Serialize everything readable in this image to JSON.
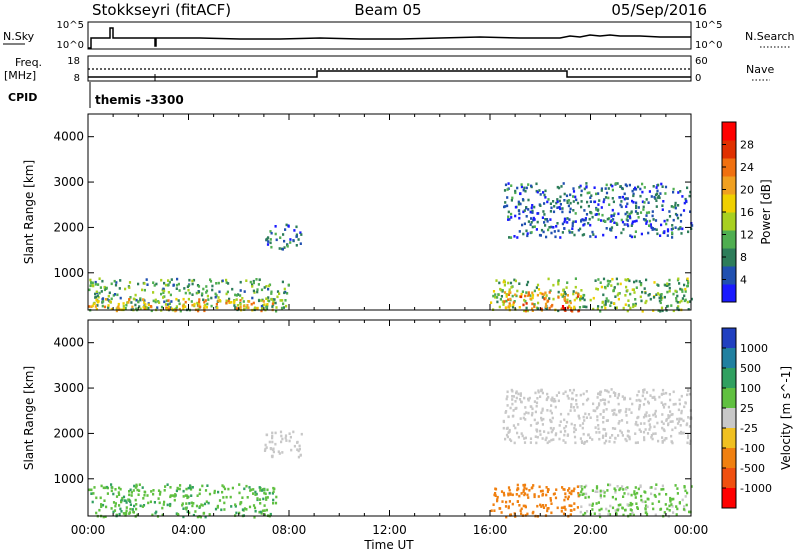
{
  "header": {
    "station": "Stokkseyri (fitACF)",
    "beam": "Beam 05",
    "date": "05/Sep/2016"
  },
  "status_panels": {
    "nsky_label": "N.Sky",
    "nsky_ticks": [
      "10^5",
      "10^0"
    ],
    "nsearch_label": "N.Search",
    "nsearch_ticks": [
      "10^5",
      "10^0"
    ],
    "freq_label_line1": "Freq.",
    "freq_label_line2": "[MHz]",
    "freq_ticks": [
      "18",
      "8"
    ],
    "nave_label": "Nave",
    "nave_ticks": [
      "60",
      "0"
    ],
    "cpid_label": "CPID",
    "cpid_text": "themis -3300"
  },
  "colors": {
    "power_scale": [
      "#1a1aff",
      "#2050b0",
      "#2d7d5a",
      "#4fae50",
      "#a8d020",
      "#f0d000",
      "#f0a020",
      "#f07010",
      "#e03000",
      "#ff0000"
    ],
    "velocity_scale": [
      "#2040c0",
      "#2080a0",
      "#30a060",
      "#60c040",
      "#c8c8c8",
      "#f0c020",
      "#f08010",
      "#f05010",
      "#ff0000"
    ]
  },
  "chart_data": [
    {
      "type": "heatmap",
      "name": "power",
      "ylabel": "Slant Range [km]",
      "ylim": [
        180,
        4500
      ],
      "y_ticks": [
        "1000",
        "2000",
        "3000",
        "4000"
      ],
      "colorbar_label": "Power [dB]",
      "colorbar_ticks": [
        "4",
        "8",
        "12",
        "16",
        "20",
        "24",
        "28"
      ],
      "colorbar_range": [
        0,
        32
      ],
      "regions": [
        {
          "x": [
            0.0,
            8.0
          ],
          "y": [
            180,
            900
          ],
          "value": 10
        },
        {
          "x": [
            0.0,
            7.5
          ],
          "y": [
            180,
            450
          ],
          "value": 20
        },
        {
          "x": [
            7.0,
            8.5
          ],
          "y": [
            1500,
            2100
          ],
          "value": 6
        },
        {
          "x": [
            16.0,
            24.0
          ],
          "y": [
            180,
            900
          ],
          "value": 12
        },
        {
          "x": [
            16.5,
            19.5
          ],
          "y": [
            180,
            600
          ],
          "value": 22
        },
        {
          "x": [
            18.8,
            19.3
          ],
          "y": [
            180,
            300
          ],
          "value": 30
        },
        {
          "x": [
            16.5,
            24.0
          ],
          "y": [
            1800,
            3000
          ],
          "value": 6
        }
      ]
    },
    {
      "type": "heatmap",
      "name": "velocity",
      "ylabel": "Slant Range [km]",
      "ylim": [
        180,
        4500
      ],
      "y_ticks": [
        "1000",
        "2000",
        "3000",
        "4000"
      ],
      "xlabel": "Time UT",
      "x_ticks": [
        "00:00",
        "04:00",
        "08:00",
        "12:00",
        "16:00",
        "20:00",
        "00:00"
      ],
      "colorbar_label": "Velocity [m s^-1]",
      "colorbar_ticks": [
        "1000",
        "500",
        "100",
        "25",
        "-25",
        "-100",
        "-500",
        "-1000"
      ],
      "regions": [
        {
          "x": [
            0.0,
            7.5
          ],
          "y": [
            180,
            900
          ],
          "value": 80
        },
        {
          "x": [
            7.0,
            8.5
          ],
          "y": [
            1500,
            2100
          ],
          "value": 0
        },
        {
          "x": [
            16.0,
            19.5
          ],
          "y": [
            180,
            900
          ],
          "value": -300
        },
        {
          "x": [
            19.5,
            24.0
          ],
          "y": [
            180,
            900
          ],
          "value": 40
        },
        {
          "x": [
            16.5,
            24.0
          ],
          "y": [
            1800,
            3000
          ],
          "value": 0
        }
      ]
    }
  ]
}
